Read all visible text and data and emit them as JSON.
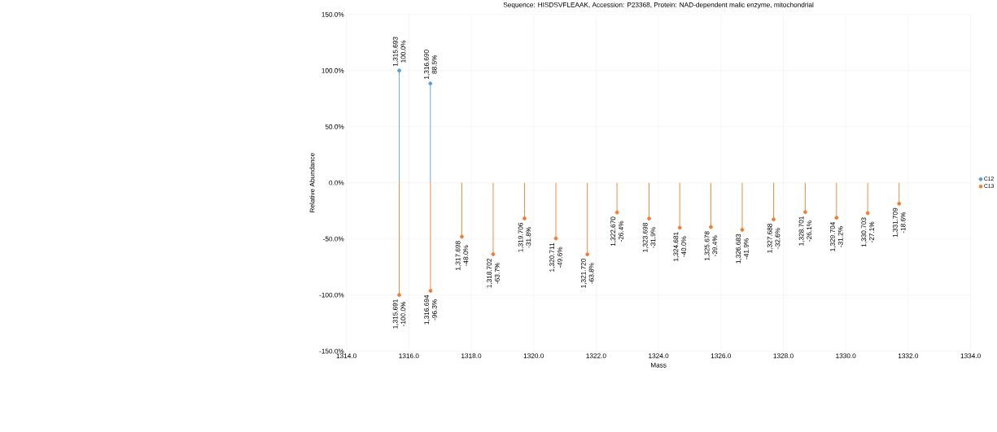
{
  "chart_data": {
    "type": "lollipop",
    "title": "Sequence: HISDSVFLEAAK, Accession: P23368, Protein: NAD-dependent  malic enzyme, mitochondrial",
    "xlabel": "Mass",
    "ylabel": "Relative Abundance",
    "xlim": [
      1314,
      1334
    ],
    "ylim": [
      -150,
      150
    ],
    "xticks": [
      {
        "value": 1314,
        "label": "1314.0"
      },
      {
        "value": 1316,
        "label": "1316.0"
      },
      {
        "value": 1318,
        "label": "1318.0"
      },
      {
        "value": 1320,
        "label": "1320.0"
      },
      {
        "value": 1322,
        "label": "1322.0"
      },
      {
        "value": 1324,
        "label": "1324.0"
      },
      {
        "value": 1326,
        "label": "1326.0"
      },
      {
        "value": 1328,
        "label": "1328.0"
      },
      {
        "value": 1330,
        "label": "1330.0"
      },
      {
        "value": 1332,
        "label": "1332.0"
      },
      {
        "value": 1334,
        "label": "1334.0"
      }
    ],
    "yticks": [
      {
        "value": -150,
        "label": "-150.0%"
      },
      {
        "value": -100,
        "label": "-100.0%"
      },
      {
        "value": -50,
        "label": "-50.0%"
      },
      {
        "value": 0,
        "label": "0.0%"
      },
      {
        "value": 50,
        "label": "50.0%"
      },
      {
        "value": 100,
        "label": "100.0%"
      },
      {
        "value": 150,
        "label": "150.0%"
      }
    ],
    "grid": true,
    "legend": "right",
    "marker": "circle",
    "series": [
      {
        "name": "C12",
        "color": "#5b9bd5",
        "x": [
          1315.693,
          1316.69
        ],
        "values": [
          100.0,
          88.5
        ],
        "value_labels": [
          "1,315.693 100.0%",
          "1,316.690 88.5%"
        ]
      },
      {
        "name": "C13",
        "color": "#ed7d31",
        "x": [
          1315.691,
          1316.694,
          1317.698,
          1318.702,
          1319.706,
          1320.711,
          1321.72,
          1322.67,
          1323.698,
          1324.681,
          1325.678,
          1326.683,
          1327.688,
          1328.701,
          1329.704,
          1330.703,
          1331.709
        ],
        "values": [
          -100.0,
          -96.3,
          -48.0,
          -63.7,
          -31.8,
          -49.6,
          -63.8,
          -26.4,
          -31.9,
          -40.0,
          -39.4,
          -41.9,
          -32.6,
          -26.1,
          -31.2,
          -27.1,
          -18.6
        ],
        "value_labels": [
          "1,315.691 -100.0%",
          "1,316.694 -96.3%",
          "1,317.698 -48.0%",
          "1,318.702 -63.7%",
          "1,319.706 -31.8%",
          "1,320.711 -49.6%",
          "1,321.720 -63.8%",
          "1,322.670 -26.4%",
          "1,323.698 -31.9%",
          "1,324.681 -40.0%",
          "1,325.678 -39.4%",
          "1,326.683 -41.9%",
          "1,327.688 -32.6%",
          "1,328.701 -26.1%",
          "1,329.704 -31.2%",
          "1,330.703 -27.1%",
          "1,331.709 -18.6%"
        ]
      }
    ]
  }
}
